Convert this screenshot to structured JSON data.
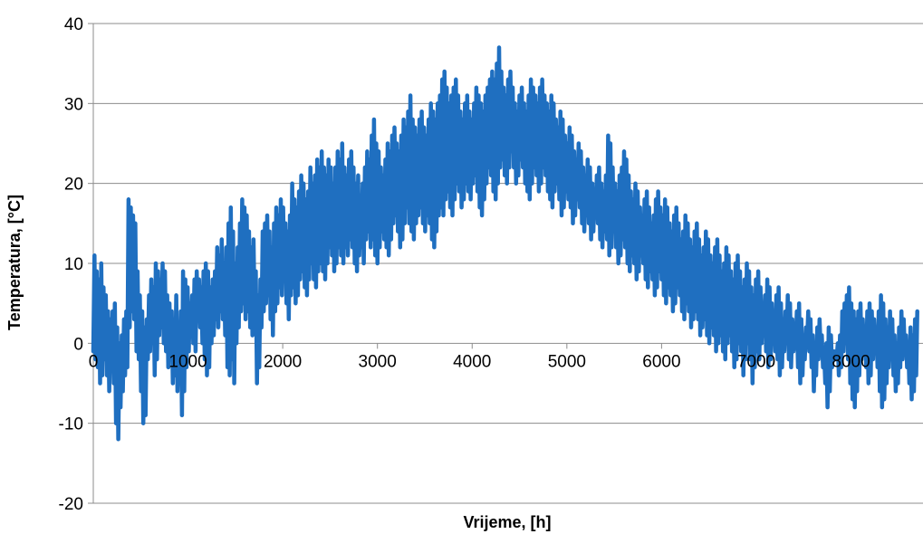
{
  "chart_data": {
    "type": "line",
    "title": "",
    "xlabel": "Vrijeme, [h]",
    "ylabel": "Temperatura, [°C]",
    "xlim": [
      0,
      8760
    ],
    "ylim": [
      -20,
      40
    ],
    "x_ticks": [
      0,
      1000,
      2000,
      3000,
      4000,
      5000,
      6000,
      7000,
      8000
    ],
    "y_ticks": [
      -20,
      -10,
      0,
      10,
      20,
      30,
      40
    ],
    "grid": "horizontal",
    "legend": "none",
    "series": [
      {
        "color": "#1f6fc0",
        "sample_step_h": 24,
        "x_start": 0,
        "daily_min": [
          -1,
          -2,
          -3,
          -5,
          -4,
          -2,
          -4,
          -6,
          -3,
          -5,
          -10,
          -12,
          -8,
          -6,
          -4,
          -3,
          2,
          4,
          3,
          -1,
          -2,
          -6,
          -10,
          -9,
          -2,
          -1,
          0,
          -4,
          -2,
          1,
          2,
          0,
          -1,
          -3,
          -2,
          -5,
          -4,
          -6,
          -5,
          -9,
          -6,
          -3,
          -1,
          2,
          0,
          -1,
          3,
          2,
          0,
          -2,
          -4,
          -3,
          0,
          1,
          3,
          2,
          4,
          3,
          1,
          -3,
          -4,
          -2,
          -5,
          0,
          2,
          4,
          5,
          3,
          4,
          2,
          1,
          3,
          -5,
          -3,
          2,
          4,
          5,
          6,
          3,
          1,
          4,
          5,
          7,
          6,
          8,
          5,
          3,
          6,
          7,
          5,
          6,
          8,
          9,
          7,
          6,
          8,
          10,
          8,
          7,
          9,
          10,
          9,
          8,
          10,
          12,
          11,
          9,
          10,
          12,
          11,
          10,
          12,
          11,
          13,
          12,
          10,
          9,
          11,
          12,
          10,
          13,
          14,
          12,
          13,
          11,
          10,
          12,
          14,
          13,
          12,
          11,
          13,
          15,
          16,
          14,
          12,
          13,
          15,
          17,
          15,
          14,
          13,
          15,
          16,
          17,
          15,
          14,
          16,
          15,
          13,
          12,
          14,
          16,
          17,
          16,
          18,
          19,
          17,
          16,
          18,
          20,
          19,
          17,
          18,
          20,
          19,
          18,
          20,
          21,
          19,
          17,
          16,
          18,
          20,
          22,
          21,
          19,
          18,
          20,
          22,
          23,
          21,
          20,
          22,
          24,
          22,
          20,
          21,
          23,
          22,
          20,
          19,
          18,
          20,
          22,
          21,
          19,
          20,
          22,
          21,
          19,
          18,
          17,
          19,
          20,
          18,
          16,
          17,
          19,
          18,
          17,
          15,
          16,
          18,
          17,
          15,
          14,
          16,
          15,
          13,
          14,
          16,
          15,
          13,
          12,
          14,
          13,
          11,
          12,
          14,
          12,
          10,
          11,
          13,
          12,
          10,
          9,
          11,
          10,
          8,
          9,
          11,
          10,
          8,
          7,
          9,
          8,
          6,
          7,
          9,
          8,
          6,
          5,
          7,
          6,
          4,
          5,
          7,
          6,
          4,
          3,
          5,
          4,
          2,
          3,
          4,
          3,
          1,
          2,
          3,
          1,
          0,
          2,
          1,
          -1,
          0,
          1,
          -1,
          -2,
          0,
          1,
          -1,
          -3,
          -2,
          0,
          -1,
          -4,
          -2,
          0,
          -2,
          -5,
          -3,
          -1,
          -2,
          0,
          1,
          -1,
          -3,
          -2,
          0,
          -1,
          -2,
          -4,
          -3,
          -1,
          0,
          -2,
          -3,
          -1,
          0,
          -3,
          -5,
          -4,
          -2,
          0,
          -1,
          -3,
          -6,
          -4,
          -2,
          -1,
          -3,
          -5,
          -8,
          -6,
          -3,
          -1,
          -2,
          -4,
          -3,
          -1,
          0,
          -2,
          -5,
          -7,
          -8,
          -6,
          -4,
          -2,
          -1,
          -3,
          -5,
          -4,
          -2,
          -1,
          -3,
          -6,
          -8,
          -7,
          -5,
          -3,
          -2,
          -4,
          -6,
          -5,
          -3,
          -2,
          -1,
          -3,
          -5,
          -7,
          -6,
          -4,
          -3
        ],
        "daily_max": [
          11,
          9,
          8,
          10,
          7,
          6,
          4,
          3,
          4,
          5,
          2,
          0,
          1,
          3,
          4,
          18,
          17,
          16,
          15,
          9,
          6,
          4,
          2,
          3,
          6,
          8,
          7,
          10,
          9,
          8,
          10,
          9,
          6,
          5,
          4,
          3,
          6,
          2,
          4,
          9,
          8,
          7,
          5,
          6,
          8,
          9,
          8,
          7,
          9,
          10,
          9,
          7,
          8,
          9,
          12,
          11,
          13,
          10,
          12,
          15,
          17,
          14,
          10,
          12,
          15,
          18,
          17,
          16,
          14,
          12,
          13,
          9,
          6,
          8,
          14,
          15,
          16,
          14,
          12,
          15,
          17,
          16,
          18,
          17,
          15,
          14,
          16,
          20,
          18,
          17,
          19,
          21,
          20,
          18,
          19,
          22,
          20,
          21,
          23,
          22,
          24,
          22,
          21,
          23,
          22,
          20,
          22,
          24,
          23,
          25,
          22,
          21,
          23,
          24,
          22,
          20,
          21,
          18,
          20,
          22,
          24,
          23,
          26,
          28,
          25,
          24,
          22,
          21,
          23,
          25,
          24,
          26,
          27,
          25,
          24,
          26,
          28,
          27,
          29,
          31,
          28,
          27,
          26,
          28,
          29,
          27,
          26,
          28,
          30,
          29,
          28,
          30,
          31,
          33,
          34,
          32,
          30,
          31,
          32,
          33,
          31,
          29,
          28,
          30,
          31,
          29,
          28,
          30,
          32,
          31,
          30,
          29,
          31,
          32,
          33,
          34,
          33,
          35,
          37,
          34,
          32,
          31,
          33,
          34,
          32,
          30,
          29,
          31,
          32,
          30,
          29,
          31,
          33,
          32,
          31,
          30,
          32,
          33,
          31,
          30,
          29,
          31,
          30,
          28,
          27,
          29,
          28,
          26,
          25,
          27,
          26,
          24,
          23,
          25,
          24,
          22,
          21,
          23,
          22,
          20,
          19,
          21,
          22,
          20,
          19,
          21,
          26,
          25,
          22,
          20,
          19,
          21,
          22,
          24,
          23,
          21,
          19,
          18,
          20,
          19,
          17,
          16,
          18,
          19,
          17,
          15,
          16,
          18,
          19,
          17,
          16,
          18,
          17,
          15,
          14,
          16,
          17,
          15,
          13,
          14,
          16,
          15,
          13,
          12,
          14,
          15,
          13,
          11,
          12,
          14,
          13,
          11,
          10,
          12,
          13,
          11,
          9,
          10,
          12,
          11,
          9,
          8,
          10,
          11,
          9,
          7,
          8,
          10,
          9,
          7,
          6,
          8,
          9,
          7,
          5,
          6,
          8,
          7,
          5,
          4,
          6,
          7,
          5,
          3,
          4,
          6,
          5,
          3,
          2,
          4,
          5,
          3,
          1,
          2,
          4,
          3,
          1,
          0,
          2,
          3,
          1,
          -1,
          0,
          2,
          1,
          -1,
          -2,
          0,
          1,
          4,
          5,
          6,
          7,
          5,
          4,
          3,
          4,
          5,
          3,
          2,
          4,
          5,
          4,
          3,
          2,
          4,
          6,
          5,
          3,
          2,
          4,
          3,
          1,
          0,
          2,
          4,
          3,
          1,
          0,
          2,
          1,
          3,
          4
        ]
      }
    ]
  }
}
